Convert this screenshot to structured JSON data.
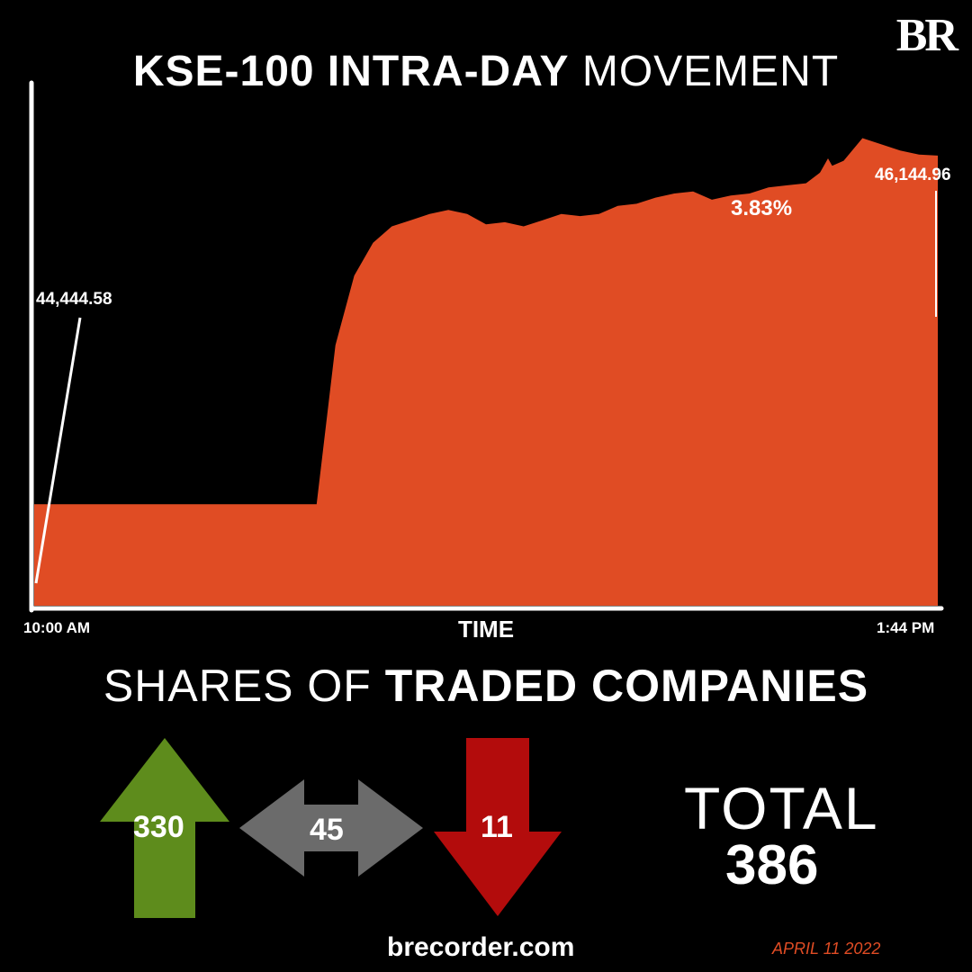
{
  "brand": {
    "logo_text": "BR",
    "website": "brecorder.com",
    "date": "APRIL 11 2022"
  },
  "title": {
    "bold": "KSE-100 INTRA-DAY",
    "light": "MOVEMENT"
  },
  "colors": {
    "area": "#e04c24",
    "up": "#5e8c1c",
    "unchanged": "#6b6b6b",
    "down": "#b30c0c",
    "axis": "#ffffff",
    "background": "#000000"
  },
  "chart_data": {
    "type": "area",
    "title": "KSE-100 INTRA-DAY MOVEMENT",
    "xlabel": "TIME",
    "ylabel": "",
    "x_start_label": "10:00 AM",
    "x_end_label": "1:44 PM",
    "start_value": "44,444.58",
    "end_value": "46,144.96",
    "change": "3.83%",
    "change_direction": "up",
    "grid": false,
    "ylim": [
      43950,
      46500
    ],
    "x": [
      0,
      1,
      2,
      3,
      4,
      5,
      6,
      7,
      8,
      9,
      10,
      11,
      12,
      13,
      14,
      15,
      16,
      17,
      18,
      19,
      20,
      21,
      22,
      23,
      24,
      25,
      26,
      27,
      28,
      29,
      30,
      31,
      32,
      33,
      34,
      35,
      36,
      37,
      38,
      39,
      40,
      41,
      42,
      43,
      44,
      45,
      46,
      47,
      48
    ],
    "values": [
      44444.58,
      44444.58,
      44444.58,
      44444.58,
      44444.58,
      44444.58,
      44444.58,
      44444.58,
      44444.58,
      44444.58,
      44444.58,
      44444.58,
      44444.58,
      44444.58,
      44444.58,
      44444.58,
      45220,
      45560,
      45720,
      45800,
      45830,
      45860,
      45880,
      45860,
      45810,
      45820,
      45800,
      45830,
      45860,
      45850,
      45860,
      45900,
      45910,
      45940,
      45960,
      45970,
      45930,
      45950,
      45960,
      45990,
      46000,
      46010,
      46080,
      46120,
      46230,
      46200,
      46170,
      46150,
      46144.96
    ]
  },
  "shares": {
    "title_light": "SHARES OF",
    "title_bold": "TRADED COMPANIES",
    "up": "330",
    "unchanged": "45",
    "down": "11",
    "total_label": "TOTAL",
    "total": "386"
  }
}
